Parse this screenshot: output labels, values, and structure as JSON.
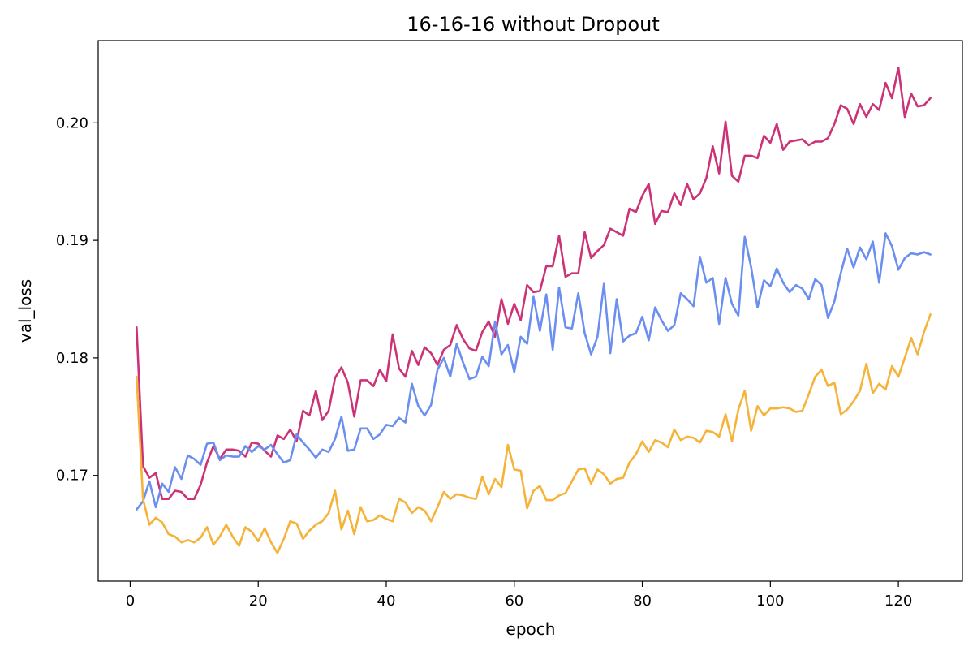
{
  "chart_data": {
    "type": "line",
    "title": "16-16-16 without Dropout",
    "xlabel": "epoch",
    "ylabel": "val_loss",
    "xlim": [
      -5,
      130
    ],
    "ylim": [
      0.161,
      0.207
    ],
    "x_ticks": [
      0,
      20,
      40,
      60,
      80,
      100,
      120
    ],
    "y_ticks": [
      0.17,
      0.18,
      0.19,
      0.2
    ],
    "x_tick_labels": [
      "0",
      "20",
      "40",
      "60",
      "80",
      "100",
      "120"
    ],
    "y_tick_labels": [
      "0.17",
      "0.18",
      "0.19",
      "0.20"
    ],
    "grid": false,
    "legend": "none",
    "x_start": 1,
    "series": [
      {
        "color": "#cc3377",
        "values": [
          0.1826,
          0.1708,
          0.1698,
          0.1702,
          0.168,
          0.168,
          0.1687,
          0.1686,
          0.168,
          0.168,
          0.1692,
          0.1711,
          0.1725,
          0.1714,
          0.1722,
          0.1722,
          0.1721,
          0.1716,
          0.1728,
          0.1727,
          0.1721,
          0.1716,
          0.1734,
          0.1731,
          0.1739,
          0.1729,
          0.1755,
          0.1751,
          0.1772,
          0.1747,
          0.1755,
          0.1783,
          0.1792,
          0.1779,
          0.175,
          0.1781,
          0.1781,
          0.1776,
          0.179,
          0.178,
          0.182,
          0.1791,
          0.1784,
          0.1806,
          0.1794,
          0.1809,
          0.1804,
          0.1794,
          0.1807,
          0.1811,
          0.1828,
          0.1816,
          0.1808,
          0.1806,
          0.1822,
          0.1831,
          0.1818,
          0.185,
          0.1829,
          0.1846,
          0.1832,
          0.1862,
          0.1856,
          0.1857,
          0.1878,
          0.1878,
          0.1904,
          0.1869,
          0.1872,
          0.1872,
          0.1907,
          0.1885,
          0.1891,
          0.1896,
          0.191,
          0.1907,
          0.1904,
          0.1927,
          0.1924,
          0.1938,
          0.1948,
          0.1914,
          0.1925,
          0.1924,
          0.194,
          0.193,
          0.1948,
          0.1935,
          0.194,
          0.1953,
          0.198,
          0.1957,
          0.2001,
          0.1955,
          0.195,
          0.1972,
          0.1972,
          0.197,
          0.1989,
          0.1983,
          0.1999,
          0.1977,
          0.1984,
          0.1985,
          0.1986,
          0.1981,
          0.1984,
          0.1984,
          0.1987,
          0.1999,
          0.2015,
          0.2012,
          0.1999,
          0.2016,
          0.2005,
          0.2016,
          0.2011,
          0.2034,
          0.2021,
          0.2047,
          0.2005,
          0.2025,
          0.2014,
          0.2015,
          0.2021
        ]
      },
      {
        "color": "#6b8ff0",
        "values": [
          0.1671,
          0.1678,
          0.1695,
          0.1673,
          0.1693,
          0.1686,
          0.1707,
          0.1697,
          0.1717,
          0.1714,
          0.1709,
          0.1727,
          0.1728,
          0.1713,
          0.1717,
          0.1716,
          0.1716,
          0.1725,
          0.172,
          0.1725,
          0.1722,
          0.1726,
          0.1718,
          0.1711,
          0.1713,
          0.1735,
          0.1728,
          0.1722,
          0.1715,
          0.1722,
          0.172,
          0.1731,
          0.175,
          0.1721,
          0.1722,
          0.174,
          0.174,
          0.1731,
          0.1735,
          0.1743,
          0.1742,
          0.1749,
          0.1745,
          0.1778,
          0.1759,
          0.1751,
          0.176,
          0.179,
          0.18,
          0.1784,
          0.1812,
          0.1796,
          0.1782,
          0.1784,
          0.1801,
          0.1793,
          0.1831,
          0.1803,
          0.1811,
          0.1788,
          0.1818,
          0.1812,
          0.1852,
          0.1823,
          0.1854,
          0.1807,
          0.186,
          0.1826,
          0.1825,
          0.1855,
          0.1821,
          0.1803,
          0.1818,
          0.1863,
          0.1804,
          0.185,
          0.1814,
          0.1819,
          0.1821,
          0.1835,
          0.1815,
          0.1843,
          0.1832,
          0.1823,
          0.1828,
          0.1855,
          0.185,
          0.1844,
          0.1886,
          0.1864,
          0.1868,
          0.1829,
          0.1868,
          0.1846,
          0.1836,
          0.1903,
          0.1877,
          0.1843,
          0.1866,
          0.1861,
          0.1876,
          0.1864,
          0.1856,
          0.1862,
          0.1859,
          0.185,
          0.1867,
          0.1862,
          0.1834,
          0.1848,
          0.1872,
          0.1893,
          0.1877,
          0.1894,
          0.1884,
          0.1899,
          0.1864,
          0.1906,
          0.1895,
          0.1875,
          0.1885,
          0.1889,
          0.1888,
          0.189,
          0.1888
        ]
      },
      {
        "color": "#f5b33a",
        "values": [
          0.1784,
          0.168,
          0.1658,
          0.1664,
          0.166,
          0.165,
          0.1648,
          0.1643,
          0.1645,
          0.1643,
          0.1647,
          0.1656,
          0.1641,
          0.1648,
          0.1658,
          0.1648,
          0.164,
          0.1656,
          0.1652,
          0.1644,
          0.1655,
          0.1643,
          0.1634,
          0.1646,
          0.1661,
          0.1659,
          0.1646,
          0.1653,
          0.1658,
          0.1661,
          0.1668,
          0.1687,
          0.1654,
          0.167,
          0.165,
          0.1673,
          0.1661,
          0.1662,
          0.1666,
          0.1663,
          0.1661,
          0.168,
          0.1677,
          0.1668,
          0.1673,
          0.167,
          0.1661,
          0.1673,
          0.1686,
          0.168,
          0.1684,
          0.1683,
          0.1681,
          0.168,
          0.1699,
          0.1684,
          0.1697,
          0.169,
          0.1726,
          0.1705,
          0.1704,
          0.1672,
          0.1687,
          0.1691,
          0.1679,
          0.1679,
          0.1683,
          0.1685,
          0.1695,
          0.1705,
          0.1706,
          0.1693,
          0.1705,
          0.1701,
          0.1693,
          0.1697,
          0.1698,
          0.1711,
          0.1718,
          0.1729,
          0.172,
          0.173,
          0.1728,
          0.1724,
          0.1739,
          0.173,
          0.1733,
          0.1732,
          0.1728,
          0.1738,
          0.1737,
          0.1733,
          0.1752,
          0.1729,
          0.1756,
          0.1772,
          0.1738,
          0.1759,
          0.1751,
          0.1757,
          0.1757,
          0.1758,
          0.1757,
          0.1754,
          0.1755,
          0.1769,
          0.1784,
          0.179,
          0.1776,
          0.1779,
          0.1752,
          0.1756,
          0.1763,
          0.1772,
          0.1795,
          0.177,
          0.1778,
          0.1773,
          0.1793,
          0.1784,
          0.18,
          0.1817,
          0.1803,
          0.1822,
          0.1837
        ]
      }
    ]
  }
}
